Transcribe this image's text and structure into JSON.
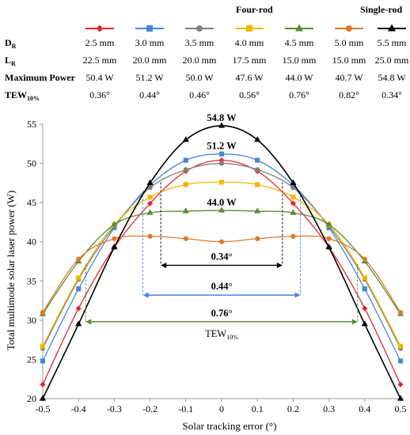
{
  "legend_table": {
    "group_labels": [
      "Four-rod",
      "Single-rod"
    ],
    "row_labels": [
      "D",
      "L",
      "Maximum Power",
      "TEW"
    ],
    "row_label_subs": [
      "R",
      "R",
      "",
      "10%"
    ],
    "columns": [
      {
        "dr": "2.5 mm",
        "lr": "22.5 mm",
        "power": "50.4 W",
        "tew": "0.36°",
        "color": "#e8262b",
        "marker": "diamond"
      },
      {
        "dr": "3.0 mm",
        "lr": "20.0 mm",
        "power": "51.2 W",
        "tew": "0.44°",
        "color": "#4a86d6",
        "marker": "square"
      },
      {
        "dr": "3.5 mm",
        "lr": "20.0 mm",
        "power": "50.0 W",
        "tew": "0.46°",
        "color": "#808080",
        "marker": "circle"
      },
      {
        "dr": "4.0 mm",
        "lr": "17.5 mm",
        "power": "47.6 W",
        "tew": "0.56°",
        "color": "#f2b800",
        "marker": "square"
      },
      {
        "dr": "4.5 mm",
        "lr": "15.0 mm",
        "power": "44.0 W",
        "tew": "0.76°",
        "color": "#5a8a32",
        "marker": "triangle"
      },
      {
        "dr": "5.0 mm",
        "lr": "15.0 mm",
        "power": "40.7 W",
        "tew": "0.82°",
        "color": "#e07a2a",
        "marker": "circle"
      },
      {
        "dr": "5.5 mm",
        "lr": "25.0 mm",
        "power": "54.8 W",
        "tew": "0.34°",
        "color": "#000000",
        "marker": "triangle"
      }
    ]
  },
  "chart_data": {
    "type": "line",
    "xlabel": "Solar tracking error (°)",
    "ylabel": "Total multimode solar laser power (W)",
    "xlim": [
      -0.5,
      0.5
    ],
    "ylim": [
      20,
      55
    ],
    "x": [
      -0.5,
      -0.4,
      -0.3,
      -0.2,
      -0.1,
      0,
      0.1,
      0.2,
      0.3,
      0.4,
      0.5
    ],
    "xticks": [
      "-0.5",
      "-0.4",
      "-0.3",
      "-0.2",
      "-0.1",
      "0",
      "0.1",
      "0.2",
      "0.3",
      "0.4",
      "0.5"
    ],
    "yticks": [
      "20",
      "25",
      "30",
      "35",
      "40",
      "45",
      "50",
      "55"
    ],
    "series": [
      {
        "values": [
          21.8,
          31.5,
          39.3,
          44.9,
          49.0,
          50.4,
          49.0,
          44.9,
          39.3,
          31.5,
          21.8
        ]
      },
      {
        "values": [
          24.8,
          34.0,
          41.8,
          47.2,
          50.4,
          51.2,
          50.4,
          47.2,
          41.8,
          34.0,
          24.8
        ]
      },
      {
        "values": [
          26.4,
          35.2,
          42.0,
          46.9,
          49.2,
          50.0,
          49.2,
          46.9,
          42.0,
          35.2,
          26.4
        ]
      },
      {
        "values": [
          26.7,
          35.4,
          42.2,
          45.7,
          47.3,
          47.6,
          47.3,
          45.7,
          42.2,
          35.4,
          26.7
        ]
      },
      {
        "values": [
          30.8,
          37.5,
          42.2,
          43.7,
          43.9,
          44.0,
          43.9,
          43.7,
          42.2,
          37.5,
          30.8
        ]
      },
      {
        "values": [
          31.0,
          37.8,
          40.4,
          40.7,
          40.4,
          40.0,
          40.4,
          40.7,
          40.4,
          37.8,
          31.0
        ]
      },
      {
        "values": [
          20.0,
          29.5,
          39.3,
          47.5,
          53.0,
          54.8,
          53.0,
          47.5,
          39.3,
          29.5,
          20.0
        ]
      }
    ],
    "annotations": {
      "peak_labels": [
        {
          "text": "54.8 W",
          "series": 6
        },
        {
          "text": "51.2 W",
          "series": 1
        },
        {
          "text": "44.0 W",
          "series": 4
        }
      ],
      "tew_arrows": [
        {
          "text": "0.34°",
          "x1": -0.17,
          "x2": 0.17,
          "y": 37,
          "series": 6,
          "dashed_to": [
            47.6,
            47.6
          ]
        },
        {
          "text": "0.44°",
          "x1": -0.22,
          "x2": 0.22,
          "y": 33.2,
          "series": 1,
          "dashed_to": [
            46.5,
            46.5
          ]
        },
        {
          "text": "0.76°",
          "x1": -0.38,
          "x2": 0.38,
          "y": 29.8,
          "series": 4,
          "dashed_to": [
            37.2,
            37.2
          ]
        }
      ],
      "tew_label": "TEW",
      "tew_label_sub": "10%"
    }
  }
}
